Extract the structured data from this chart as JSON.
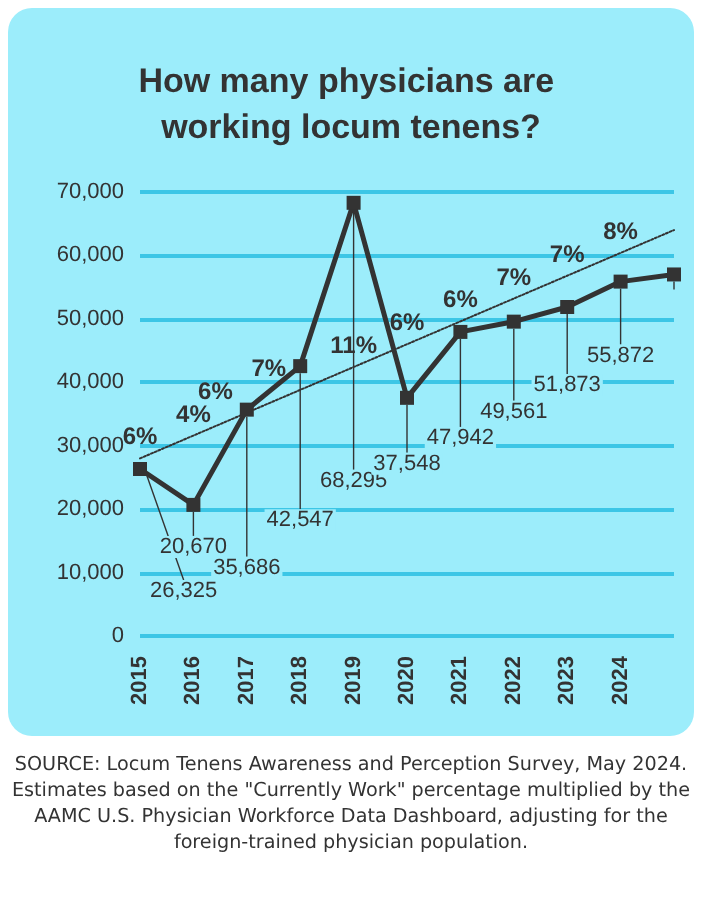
{
  "chart_data": {
    "type": "line",
    "title": "How many physicians are working locum tenens?",
    "categories": [
      "2015",
      "2016",
      "2017",
      "2018",
      "2019",
      "2020",
      "2021",
      "2022",
      "2023",
      "2024",
      null
    ],
    "series": [
      {
        "color": "#333333",
        "values": [
          26325,
          20670,
          35686,
          42547,
          68295,
          37548,
          47942,
          49561,
          51873,
          55872,
          57000
        ],
        "value_labels": [
          "26,325",
          "20,670",
          "35,686",
          "42,547",
          "68,295",
          "37,548",
          "47,942",
          "49,561",
          "51,873",
          "55,872",
          null
        ],
        "marker": "square",
        "line_style": "solid"
      },
      {
        "type": "line",
        "color": "#333333",
        "values": [
          28000,
          null,
          null,
          null,
          null,
          null,
          null,
          null,
          null,
          null,
          64000
        ],
        "marker": "none",
        "line_style": "dotted"
      }
    ],
    "ylim": [
      0,
      70000
    ],
    "yticks": [
      {
        "value": 0,
        "label": "0"
      },
      {
        "value": 10000,
        "label": "10,000"
      },
      {
        "value": 20000,
        "label": "20,000"
      },
      {
        "value": 30000,
        "label": "30,000"
      },
      {
        "value": 40000,
        "label": "40,000"
      },
      {
        "value": 50000,
        "label": "50,000"
      },
      {
        "value": 60000,
        "label": "60,000"
      },
      {
        "value": 70000,
        "label": "70,000"
      }
    ],
    "grid": "y",
    "annotations": [
      "6%",
      "4%",
      "6%",
      "7%",
      "11%",
      "6%",
      "6%",
      "7%",
      "7%",
      "8%",
      "SOURCE: Locum Tenens Awareness and Perception Survey, May 2024. Estimates based on the \"Currently Work\" percentage multiplied by the AAMC U.S. Physician Workforce Data Dashboard, adjusting for the foreign-trained physician population."
    ]
  }
}
